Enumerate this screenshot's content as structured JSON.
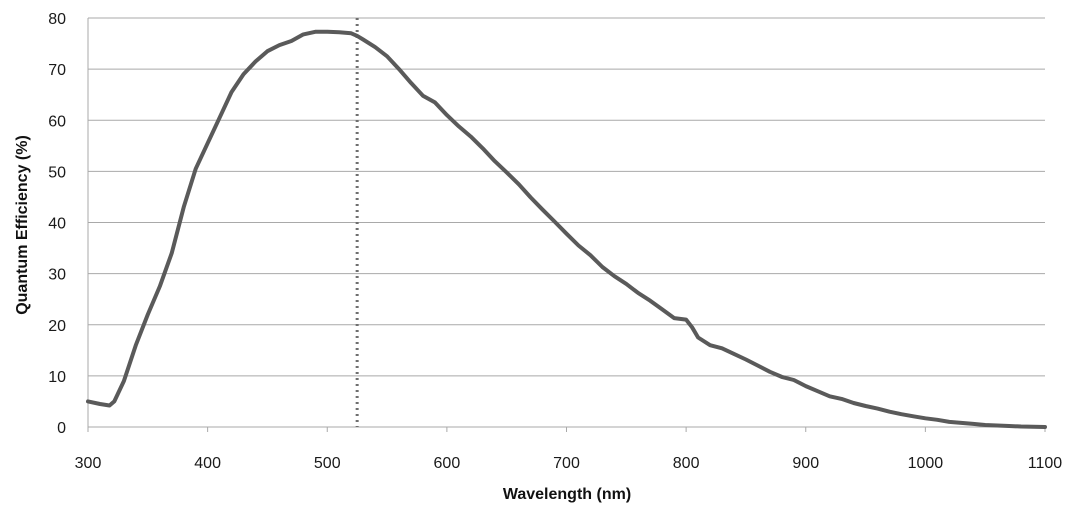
{
  "chart_data": {
    "type": "line",
    "title": "",
    "xlabel": "Wavelength (nm)",
    "ylabel": "Quantum Efficiency (%)",
    "xlim": [
      300,
      1100
    ],
    "ylim": [
      0,
      80
    ],
    "xticks": [
      300,
      400,
      500,
      600,
      700,
      800,
      900,
      1000,
      1100
    ],
    "yticks": [
      0,
      10,
      20,
      30,
      40,
      50,
      60,
      70,
      80
    ],
    "grid": true,
    "legend": "none",
    "series": [
      {
        "color": "#5a5a5a",
        "points": [
          [
            300,
            5.0
          ],
          [
            310,
            4.5
          ],
          [
            318,
            4.2
          ],
          [
            322,
            5.0
          ],
          [
            330,
            9.0
          ],
          [
            340,
            16.0
          ],
          [
            350,
            22.0
          ],
          [
            360,
            27.5
          ],
          [
            370,
            34.0
          ],
          [
            380,
            43.0
          ],
          [
            390,
            50.5
          ],
          [
            400,
            55.5
          ],
          [
            410,
            60.5
          ],
          [
            420,
            65.5
          ],
          [
            430,
            69.0
          ],
          [
            440,
            71.5
          ],
          [
            450,
            73.5
          ],
          [
            460,
            74.7
          ],
          [
            470,
            75.5
          ],
          [
            480,
            76.8
          ],
          [
            490,
            77.3
          ],
          [
            500,
            77.3
          ],
          [
            510,
            77.2
          ],
          [
            520,
            77.0
          ],
          [
            525,
            76.5
          ],
          [
            530,
            75.8
          ],
          [
            540,
            74.3
          ],
          [
            550,
            72.5
          ],
          [
            560,
            70.0
          ],
          [
            570,
            67.3
          ],
          [
            580,
            64.8
          ],
          [
            590,
            63.5
          ],
          [
            600,
            61.0
          ],
          [
            610,
            58.8
          ],
          [
            620,
            56.8
          ],
          [
            630,
            54.5
          ],
          [
            640,
            52.0
          ],
          [
            650,
            49.8
          ],
          [
            660,
            47.5
          ],
          [
            670,
            44.9
          ],
          [
            680,
            42.5
          ],
          [
            690,
            40.2
          ],
          [
            700,
            37.8
          ],
          [
            710,
            35.5
          ],
          [
            720,
            33.6
          ],
          [
            730,
            31.3
          ],
          [
            740,
            29.5
          ],
          [
            750,
            28.0
          ],
          [
            760,
            26.2
          ],
          [
            770,
            24.7
          ],
          [
            780,
            23.0
          ],
          [
            790,
            21.3
          ],
          [
            800,
            21.0
          ],
          [
            805,
            19.5
          ],
          [
            810,
            17.5
          ],
          [
            820,
            16.0
          ],
          [
            830,
            15.4
          ],
          [
            840,
            14.3
          ],
          [
            850,
            13.2
          ],
          [
            860,
            12.0
          ],
          [
            870,
            10.8
          ],
          [
            880,
            9.8
          ],
          [
            890,
            9.2
          ],
          [
            900,
            8.0
          ],
          [
            910,
            7.0
          ],
          [
            920,
            6.0
          ],
          [
            930,
            5.5
          ],
          [
            940,
            4.7
          ],
          [
            950,
            4.1
          ],
          [
            960,
            3.6
          ],
          [
            970,
            3.0
          ],
          [
            980,
            2.5
          ],
          [
            990,
            2.1
          ],
          [
            1000,
            1.7
          ],
          [
            1010,
            1.4
          ],
          [
            1020,
            1.0
          ],
          [
            1030,
            0.8
          ],
          [
            1040,
            0.6
          ],
          [
            1050,
            0.4
          ],
          [
            1060,
            0.3
          ],
          [
            1070,
            0.2
          ],
          [
            1080,
            0.1
          ],
          [
            1090,
            0.05
          ],
          [
            1100,
            0.0
          ]
        ]
      }
    ],
    "reference_line": {
      "x": 525,
      "style": "dotted",
      "color": "#6f6f6f"
    }
  }
}
